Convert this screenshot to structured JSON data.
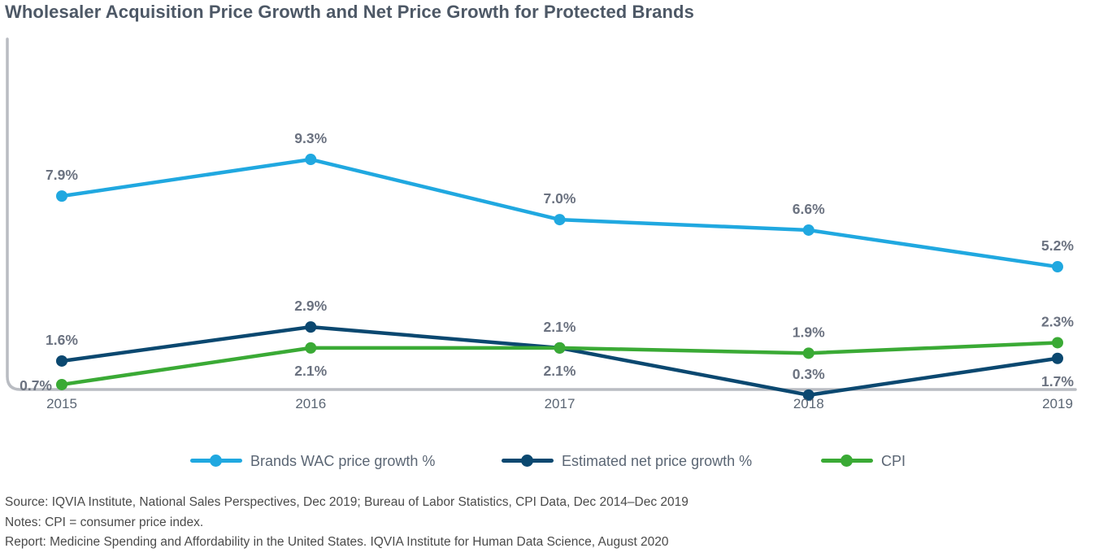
{
  "chart_data": {
    "type": "line",
    "title": "Wholesaler Acquisition Price Growth and Net Price Growth for Protected Brands",
    "categories": [
      "2015",
      "2016",
      "2017",
      "2018",
      "2019"
    ],
    "ylim": [
      0,
      10
    ],
    "grid": false,
    "legend_position": "bottom",
    "series": [
      {
        "name": "Brands WAC price growth %",
        "color": "#20a8e0",
        "values": [
          7.9,
          9.3,
          7.0,
          6.6,
          5.2
        ],
        "labels": [
          "7.9%",
          "9.3%",
          "7.0%",
          "6.6%",
          "5.2%"
        ],
        "label_pos": [
          "above",
          "above",
          "above",
          "above",
          "above"
        ]
      },
      {
        "name": "Estimated net price growth %",
        "color": "#0b4870",
        "values": [
          1.6,
          2.9,
          2.1,
          0.3,
          1.7
        ],
        "labels": [
          "1.6%",
          "2.9%",
          "2.1%",
          "0.3%",
          "1.7%"
        ],
        "label_pos": [
          "above",
          "above",
          "above",
          "above",
          "below"
        ]
      },
      {
        "name": "CPI",
        "color": "#3aaa35",
        "values": [
          0.7,
          2.1,
          2.1,
          1.9,
          2.3
        ],
        "labels": [
          "0.7%",
          "2.1%",
          "2.1%",
          "1.9%",
          "2.3%"
        ],
        "label_pos": [
          "left",
          "below",
          "below",
          "above",
          "above"
        ]
      }
    ]
  },
  "notes": {
    "source": "Source: IQVIA Institute, National Sales Perspectives, Dec 2019; Bureau of Labor Statistics, CPI Data, Dec 2014–Dec 2019",
    "notes": "Notes: CPI = consumer price index.",
    "report": "Report: Medicine Spending and Affordability in the United States. IQVIA Institute for Human Data Science, August 2020"
  }
}
